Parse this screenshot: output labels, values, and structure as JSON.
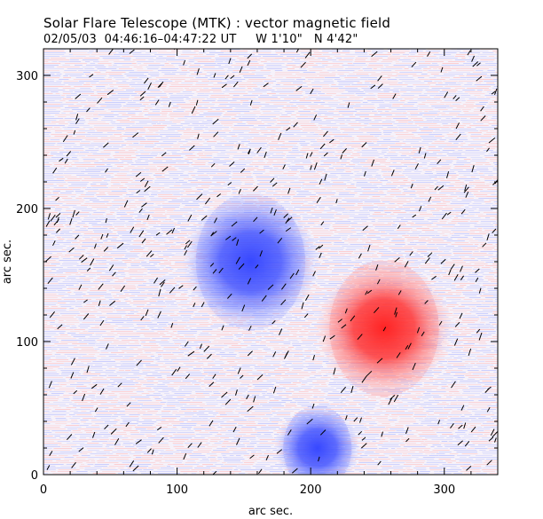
{
  "chart_data": {
    "type": "heatmap",
    "title": "Solar Flare Telescope (MTK) : vector magnetic field",
    "subtitle": "02/05/03  04:46:16–04:47:22 UT     W 1'10\"   N 4'42\"",
    "xlabel": "arc sec.",
    "ylabel": "arc sec.",
    "xlim": [
      0,
      340
    ],
    "ylim": [
      0,
      320
    ],
    "x_ticks": [
      0,
      100,
      200,
      300
    ],
    "y_ticks": [
      0,
      100,
      200,
      300
    ],
    "grid": false,
    "colors": {
      "negative_polarity": "#3a4cff",
      "positive_polarity": "#ff2a2a",
      "background_blue": "#aab4ff",
      "background_red": "#ffb4b4",
      "vector_arrows": "#000000"
    },
    "magnetic_regions": [
      {
        "polarity": "negative",
        "center_x": 155,
        "center_y": 160,
        "radius": 32
      },
      {
        "polarity": "positive",
        "center_x": 255,
        "center_y": 110,
        "radius": 32
      },
      {
        "polarity": "negative",
        "center_x": 205,
        "center_y": 20,
        "radius": 20
      }
    ]
  }
}
